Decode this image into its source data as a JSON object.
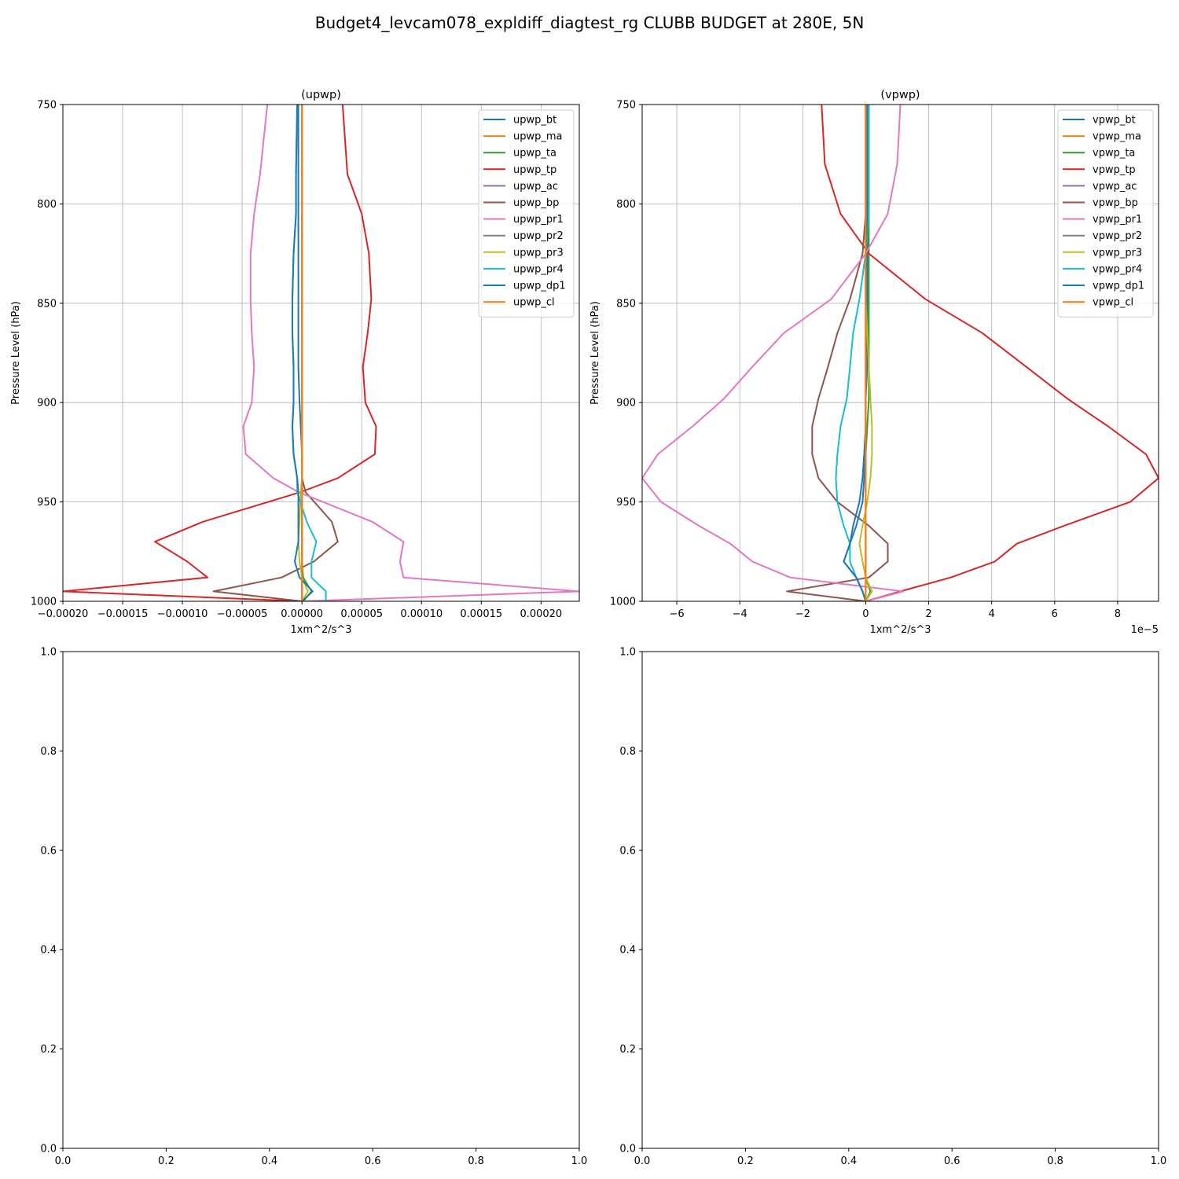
{
  "figure_title": "Budget4_levcam078_expldiff_diagtest_rg CLUBB BUDGET at 280E, 5N",
  "chart_data": [
    {
      "type": "line",
      "title": "(upwp)",
      "xlabel": "1xm^2/s^3",
      "ylabel": "Pressure Level (hPa)",
      "x_offset_text": "",
      "xlim": [
        -0.0002,
        0.000232
      ],
      "ylim": [
        1000,
        750
      ],
      "grid": true,
      "legend_position": "top-right",
      "xticks": [
        -0.0002,
        -0.00015,
        -0.0001,
        -5e-05,
        0,
        5e-05,
        0.0001,
        0.00015,
        0.0002
      ],
      "xtick_labels": [
        "−0.00020",
        "−0.00015",
        "−0.00010",
        "−0.00005",
        "0.00000",
        "0.00005",
        "0.00010",
        "0.00015",
        "0.00020"
      ],
      "yticks": [
        750,
        800,
        850,
        900,
        950,
        1000
      ],
      "ytick_labels": [
        "750",
        "800",
        "850",
        "900",
        "950",
        "1000"
      ],
      "levels": [
        750,
        785,
        805,
        825,
        848,
        865,
        882,
        900,
        912,
        926,
        938,
        945,
        960,
        970,
        980,
        988,
        995,
        1000
      ],
      "series": [
        {
          "name": "upwp_bt",
          "color": "#1f77b4",
          "x": [
            -3e-06,
            -3e-06,
            -3e-06,
            -3e-06,
            -3e-06,
            -3e-06,
            -3e-06,
            -2e-06,
            -1e-06,
            0,
            0,
            0,
            0,
            0,
            0,
            0,
            0,
            0
          ]
        },
        {
          "name": "upwp_ma",
          "color": "#ff7f0e",
          "x": [
            0,
            0,
            0,
            0,
            0,
            0,
            0,
            0,
            0,
            0,
            0,
            0,
            0,
            0,
            0,
            0,
            0,
            0
          ]
        },
        {
          "name": "upwp_ta",
          "color": "#2ca02c",
          "x": [
            0,
            0,
            0,
            0,
            0,
            0,
            0,
            0,
            0,
            0,
            0,
            0,
            0,
            0,
            0,
            1e-06,
            8e-06,
            1e-06
          ]
        },
        {
          "name": "upwp_tp",
          "color": "#d62728",
          "x": [
            3.4e-05,
            3.8e-05,
            5e-05,
            5.6e-05,
            5.8e-05,
            5.5e-05,
            5.1e-05,
            5.3e-05,
            6.2e-05,
            6.1e-05,
            3e-05,
            -1e-06,
            -8.3e-05,
            -0.000123,
            -9.6e-05,
            -7.9e-05,
            -0.0002,
            0
          ]
        },
        {
          "name": "upwp_ac",
          "color": "#9467bd",
          "x": [
            0,
            0,
            0,
            0,
            0,
            0,
            0,
            0,
            0,
            0,
            0,
            0,
            0,
            0,
            0,
            0,
            0,
            0
          ]
        },
        {
          "name": "upwp_bp",
          "color": "#8c564b",
          "x": [
            0,
            0,
            0,
            0,
            0,
            0,
            0,
            0,
            0,
            0,
            0,
            3e-06,
            2.5e-05,
            3e-05,
            1e-05,
            -1.7e-05,
            -7.4e-05,
            0
          ]
        },
        {
          "name": "upwp_pr1",
          "color": "#e377c2",
          "x": [
            -2.9e-05,
            -3.5e-05,
            -4e-05,
            -4.3e-05,
            -4.3e-05,
            -4.2e-05,
            -4e-05,
            -4.2e-05,
            -4.9e-05,
            -4.7e-05,
            -2.4e-05,
            -3e-06,
            5.9e-05,
            8.5e-05,
            8.2e-05,
            8.5e-05,
            0.000232,
            0
          ]
        },
        {
          "name": "upwp_pr2",
          "color": "#7f7f7f",
          "x": [
            0,
            0,
            0,
            0,
            0,
            0,
            0,
            0,
            0,
            0,
            0,
            0,
            0,
            0,
            0,
            0,
            0,
            0
          ]
        },
        {
          "name": "upwp_pr3",
          "color": "#bcbd22",
          "x": [
            0,
            0,
            0,
            0,
            0,
            0,
            0,
            0,
            0,
            0,
            0,
            -1e-06,
            -2e-06,
            -3e-06,
            -2e-06,
            0,
            5e-06,
            0
          ]
        },
        {
          "name": "upwp_pr4",
          "color": "#17becf",
          "x": [
            -4e-06,
            -5e-06,
            -5e-06,
            -7e-06,
            -8e-06,
            -8e-06,
            -7e-06,
            -7e-06,
            -8e-06,
            -7e-06,
            -4e-06,
            -4e-06,
            4e-06,
            1.2e-05,
            8e-06,
            8e-06,
            2e-05,
            2e-05
          ]
        },
        {
          "name": "upwp_dp1",
          "color": "#1f77b4",
          "x": [
            -4e-06,
            -5e-06,
            -5e-06,
            -7e-06,
            -8e-06,
            -8e-06,
            -7e-06,
            -7e-06,
            -8e-06,
            -7e-06,
            -4e-06,
            -3e-06,
            -3e-06,
            -3e-06,
            -6e-06,
            -2e-06,
            9e-06,
            0
          ]
        },
        {
          "name": "upwp_cl",
          "color": "#ff7f0e",
          "x": [
            0,
            0,
            0,
            0,
            0,
            0,
            0,
            0,
            0,
            0,
            0,
            0,
            0,
            0,
            0,
            0,
            0,
            0
          ]
        }
      ]
    },
    {
      "type": "line",
      "title": "(vpwp)",
      "xlabel": "1xm^2/s^3",
      "ylabel": "Pressure Level (hPa)",
      "x_offset_text": "1e−5",
      "xlim": [
        -7.1,
        9.3
      ],
      "ylim": [
        1000,
        750
      ],
      "grid": true,
      "legend_position": "top-right",
      "xticks": [
        -6,
        -4,
        -2,
        0,
        2,
        4,
        6,
        8
      ],
      "xtick_labels": [
        "−6",
        "−4",
        "−2",
        "0",
        "2",
        "4",
        "6",
        "8"
      ],
      "yticks": [
        750,
        800,
        850,
        900,
        950,
        1000
      ],
      "ytick_labels": [
        "750",
        "800",
        "850",
        "900",
        "950",
        "1000"
      ],
      "levels": [
        750,
        780,
        805,
        825,
        848,
        865,
        882,
        898,
        912,
        926,
        938,
        950,
        962,
        971,
        980,
        988,
        995,
        1000
      ],
      "series": [
        {
          "name": "vpwp_bt",
          "color": "#1f77b4",
          "x": [
            0.1,
            0.1,
            0.1,
            0.05,
            0.05,
            0.05,
            0.05,
            0,
            0,
            -0.05,
            -0.1,
            -0.2,
            -0.4,
            -0.5,
            -0.7,
            -0.3,
            -0.1,
            0
          ]
        },
        {
          "name": "vpwp_ma",
          "color": "#ff7f0e",
          "x": [
            0,
            0,
            0,
            0,
            0,
            0,
            0,
            0,
            0,
            0,
            0,
            0,
            0,
            0,
            0,
            0,
            0,
            0
          ]
        },
        {
          "name": "vpwp_ta",
          "color": "#2ca02c",
          "x": [
            0.1,
            0.1,
            0.1,
            0.1,
            0.1,
            0.1,
            0.1,
            0.1,
            0.05,
            0,
            0,
            0,
            0,
            0,
            0,
            0,
            0.15,
            0
          ]
        },
        {
          "name": "vpwp_tp",
          "color": "#d62728",
          "x": [
            -1.4,
            -1.3,
            -0.8,
            0.1,
            1.9,
            3.7,
            5.1,
            6.4,
            7.7,
            8.9,
            9.3,
            8.4,
            6.3,
            4.8,
            4.1,
            2.7,
            1.1,
            0
          ]
        },
        {
          "name": "vpwp_ac",
          "color": "#9467bd",
          "x": [
            0,
            0,
            0,
            0,
            0,
            0,
            0,
            0,
            0,
            0,
            0,
            0,
            0,
            0,
            0,
            0,
            0,
            0
          ]
        },
        {
          "name": "vpwp_bp",
          "color": "#8c564b",
          "x": [
            0,
            0,
            0,
            -0.1,
            -0.5,
            -0.9,
            -1.2,
            -1.5,
            -1.7,
            -1.7,
            -1.5,
            -0.9,
            0.1,
            0.7,
            0.7,
            0.1,
            -2.5,
            0
          ]
        },
        {
          "name": "vpwp_pr1",
          "color": "#e377c2",
          "x": [
            1.1,
            1.0,
            0.7,
            0,
            -1.1,
            -2.6,
            -3.6,
            -4.5,
            -5.5,
            -6.6,
            -7.1,
            -6.5,
            -5.3,
            -4.3,
            -3.6,
            -2.4,
            1.2,
            0
          ]
        },
        {
          "name": "vpwp_pr2",
          "color": "#7f7f7f",
          "x": [
            0,
            0,
            0,
            0,
            0,
            0,
            0,
            0,
            0,
            0,
            0,
            0,
            0,
            0,
            0,
            0,
            0,
            0
          ]
        },
        {
          "name": "vpwp_pr3",
          "color": "#bcbd22",
          "x": [
            0,
            0,
            0,
            0,
            0,
            0.05,
            0.1,
            0.15,
            0.2,
            0.2,
            0.15,
            0.05,
            -0.1,
            -0.2,
            -0.1,
            0,
            0.2,
            0
          ]
        },
        {
          "name": "vpwp_pr4",
          "color": "#17becf",
          "x": [
            0.1,
            0.1,
            0.1,
            0,
            -0.2,
            -0.4,
            -0.5,
            -0.6,
            -0.8,
            -0.9,
            -0.95,
            -0.9,
            -0.7,
            -0.5,
            -0.5,
            -0.3,
            -0.1,
            0
          ]
        },
        {
          "name": "vpwp_dp1",
          "color": "#1f77b4",
          "x": [
            0.05,
            0.05,
            0.05,
            0,
            0,
            0,
            0,
            0,
            0,
            0,
            -0.05,
            -0.1,
            -0.3,
            -0.5,
            -0.7,
            -0.3,
            -0.1,
            0
          ]
        },
        {
          "name": "vpwp_cl",
          "color": "#ff7f0e",
          "x": [
            0,
            0,
            0,
            0,
            0,
            0,
            0,
            0,
            0,
            0,
            0,
            0,
            0,
            0,
            0,
            0,
            0,
            0
          ]
        }
      ]
    },
    {
      "type": "line",
      "title": "",
      "xlim": [
        0,
        1
      ],
      "ylim": [
        0,
        1
      ],
      "grid": false,
      "xticks": [
        0,
        0.2,
        0.4,
        0.6,
        0.8,
        1
      ],
      "xtick_labels": [
        "0.0",
        "0.2",
        "0.4",
        "0.6",
        "0.8",
        "1.0"
      ],
      "yticks": [
        0,
        0.2,
        0.4,
        0.6,
        0.8,
        1
      ],
      "ytick_labels": [
        "0.0",
        "0.2",
        "0.4",
        "0.6",
        "0.8",
        "1.0"
      ],
      "series": []
    },
    {
      "type": "line",
      "title": "",
      "xlim": [
        0,
        1
      ],
      "ylim": [
        0,
        1
      ],
      "grid": false,
      "xticks": [
        0,
        0.2,
        0.4,
        0.6,
        0.8,
        1
      ],
      "xtick_labels": [
        "0.0",
        "0.2",
        "0.4",
        "0.6",
        "0.8",
        "1.0"
      ],
      "yticks": [
        0,
        0.2,
        0.4,
        0.6,
        0.8,
        1
      ],
      "ytick_labels": [
        "0.0",
        "0.2",
        "0.4",
        "0.6",
        "0.8",
        "1.0"
      ],
      "series": []
    }
  ]
}
